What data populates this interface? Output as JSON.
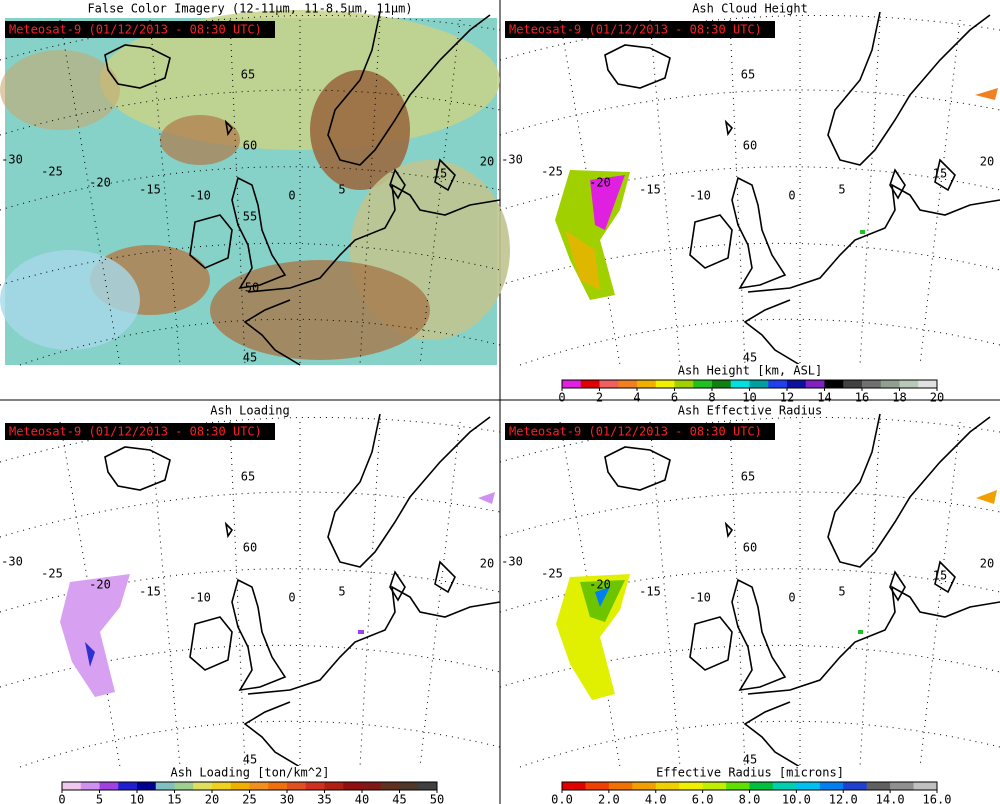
{
  "panels": [
    {
      "title": "False Color Imagery (12-11μm, 11-8.5μm, 11μm)",
      "timestamp": "Meteosat-9  (01/12/2013 - 08:30 UTC)",
      "grid_labels": [
        "65",
        "60",
        "55",
        "50",
        "45",
        "-30",
        "-25",
        "-20",
        "-15",
        "-10",
        "0",
        "5",
        "15",
        "20"
      ]
    },
    {
      "title": "Ash Cloud Height",
      "timestamp": "Meteosat-9  (01/12/2013 - 08:30 UTC)",
      "grid_labels": [
        "65",
        "60",
        "45",
        "-30",
        "-25",
        "-20",
        "-15",
        "-10",
        "0",
        "5",
        "15",
        "20"
      ],
      "colorbar": {
        "label": "Ash Height [km, ASL]",
        "range": [
          0,
          20
        ],
        "ticks": [
          0,
          2,
          4,
          6,
          8,
          10,
          12,
          14,
          16,
          18,
          20
        ],
        "colors": [
          "#e020e0",
          "#e00000",
          "#f06060",
          "#f08020",
          "#f0b000",
          "#f0f000",
          "#a0d000",
          "#20c020",
          "#108010",
          "#00e0e0",
          "#00a0a0",
          "#2040f0",
          "#1010a0",
          "#8020c0",
          "#000000",
          "#404040",
          "#707070",
          "#90a090",
          "#b8c8b8",
          "#e0e0e0"
        ]
      }
    },
    {
      "title": "Ash Loading",
      "timestamp": "Meteosat-9  (01/12/2013 - 08:30 UTC)",
      "grid_labels": [
        "65",
        "60",
        "45",
        "-30",
        "-25",
        "-20",
        "-15",
        "-10",
        "0",
        "5",
        "20"
      ],
      "colorbar": {
        "label": "Ash Loading [ton/km^2]",
        "range": [
          0,
          50
        ],
        "ticks": [
          0,
          5,
          10,
          15,
          20,
          25,
          30,
          35,
          40,
          45,
          50
        ],
        "colors": [
          "#f0c8f0",
          "#d090f0",
          "#a040e0",
          "#2020d0",
          "#000090",
          "#80c0c0",
          "#a0d090",
          "#e0e060",
          "#f0d020",
          "#f0b000",
          "#f09020",
          "#f07010",
          "#e05020",
          "#d03020",
          "#b02010",
          "#901010",
          "#801818",
          "#603020",
          "#503828",
          "#404040"
        ]
      }
    },
    {
      "title": "Ash Effective Radius",
      "timestamp": "Meteosat-9  (01/12/2013 - 08:30 UTC)",
      "grid_labels": [
        "65",
        "60",
        "45",
        "-30",
        "-25",
        "-20",
        "-15",
        "-10",
        "0",
        "5",
        "15",
        "20"
      ],
      "colorbar": {
        "label": "Effective Radius [microns]",
        "range": [
          0,
          16
        ],
        "ticks": [
          {
            "value": 0,
            "label": "0.0"
          },
          {
            "value": 2,
            "label": "2.0"
          },
          {
            "value": 4,
            "label": "4.0"
          },
          {
            "value": 6,
            "label": "6.0"
          },
          {
            "value": 8,
            "label": "8.0"
          },
          {
            "value": 10,
            "label": "10.0"
          },
          {
            "value": 12,
            "label": "12.0"
          },
          {
            "value": 14,
            "label": "14.0"
          },
          {
            "value": 16,
            "label": "16.0"
          }
        ],
        "colors": [
          "#e00000",
          "#f04000",
          "#f07000",
          "#f0a000",
          "#f0d000",
          "#f0f000",
          "#c0f000",
          "#60e000",
          "#00c040",
          "#00d0b0",
          "#00c0f0",
          "#0080f0",
          "#2040d0",
          "#606060",
          "#909090",
          "#c0c0c0"
        ]
      }
    }
  ]
}
